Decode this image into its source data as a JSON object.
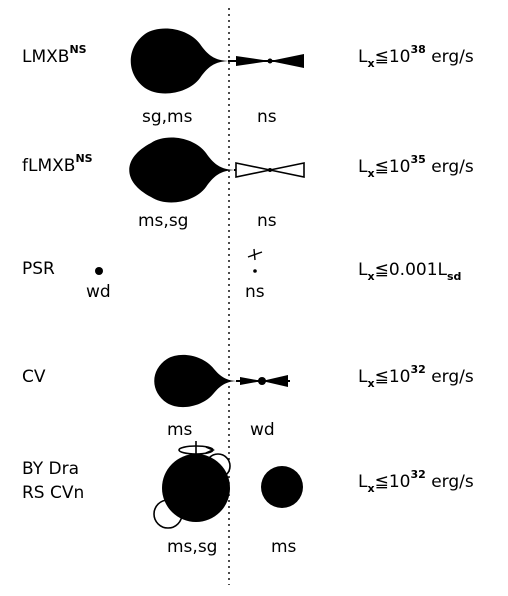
{
  "rows": [
    {
      "class_label": "LMXB",
      "class_sup": "NS",
      "donor_label": "sg,ms",
      "accretor_label": "ns",
      "lx": {
        "sym": "L",
        "sub": "x",
        "rel": "≦",
        "val": "10",
        "sup": "38",
        "unit": " erg/s"
      }
    },
    {
      "class_label": "fLMXB",
      "class_sup": "NS",
      "donor_label": "ms,sg",
      "accretor_label": "ns",
      "lx": {
        "sym": "L",
        "sub": "x",
        "rel": "≦",
        "val": "10",
        "sup": "35",
        "unit": " erg/s"
      }
    },
    {
      "class_label": "PSR",
      "donor_label": "wd",
      "accretor_label": "ns",
      "lx": {
        "sym": "L",
        "sub": "x",
        "rel": "≦",
        "val": "0.001L",
        "sub2": "sd"
      }
    },
    {
      "class_label": "CV",
      "donor_label": "ms",
      "accretor_label": "wd",
      "lx": {
        "sym": "L",
        "sub": "x",
        "rel": "≦",
        "val": "10",
        "sup": "32",
        "unit": " erg/s"
      }
    },
    {
      "class_label_line1": "BY Dra",
      "class_label_line2": "RS CVn",
      "donor_label": "ms,sg",
      "accretor_label": "ms",
      "lx": {
        "sym": "L",
        "sub": "x",
        "rel": "≦",
        "val": "10",
        "sup": "32",
        "unit": " erg/s"
      }
    }
  ],
  "colors": {
    "ink": "#000000",
    "background": "#ffffff"
  }
}
